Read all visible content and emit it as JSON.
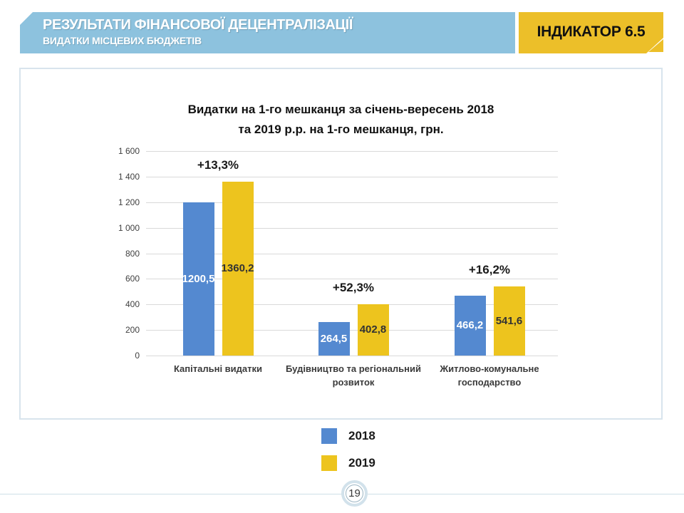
{
  "header": {
    "title": "РЕЗУЛЬТАТИ ФІНАНСОВОЇ ДЕЦЕНТРАЛІЗАЦІЇ",
    "subtitle": "ВИДАТКИ МІСЦЕВИХ БЮДЖЕТІВ",
    "indicator": "ІНДИКАТОР 6.5",
    "banner_color": "#8dc2de",
    "indicator_color": "#ecbf29"
  },
  "chart_data": {
    "type": "bar",
    "title": "Видатки на 1-го мешканця за січень-вересень 2018 та 2019 р.р. на 1-го мешканця, грн.",
    "title_lines": [
      "Видатки на 1-го мешканця за січень-вересень 2018",
      "та 2019 р.р. на 1-го мешканця, грн."
    ],
    "categories": [
      "Капітальні видатки",
      "Будівництво та регіональний розвиток",
      "Житлово-комунальне господарство"
    ],
    "series": [
      {
        "name": "2018",
        "color": "#5489d0",
        "label_color": "#ffffff",
        "values": [
          1200.5,
          264.5,
          466.2
        ],
        "labels": [
          "1200,5",
          "264,5",
          "466,2"
        ]
      },
      {
        "name": "2019",
        "color": "#edc41e",
        "label_color": "#333333",
        "values": [
          1360.2,
          402.8,
          541.6
        ],
        "labels": [
          "1360,2",
          "402,8",
          "541,6"
        ]
      }
    ],
    "growth_labels": [
      "+13,3%",
      "+52,3%",
      "+16,2%"
    ],
    "y_ticks": [
      "1 600",
      "1 400",
      "1 200",
      "1 000",
      "800",
      "600",
      "400",
      "200",
      "0"
    ],
    "ylim": [
      0,
      1600
    ],
    "xlabel": "",
    "ylabel": "",
    "grid": true,
    "legend_position": "bottom"
  },
  "footer": {
    "page_number": "19"
  }
}
